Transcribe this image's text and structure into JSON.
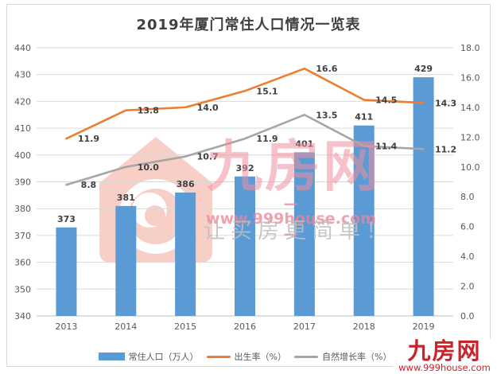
{
  "title": "2019年厦门常住人口情况一览表",
  "chart_data": {
    "type": "combo-bar-line",
    "title": "2019年厦门常住人口情况一览表",
    "categories": [
      "2013",
      "2014",
      "2015",
      "2016",
      "2017",
      "2018",
      "2019"
    ],
    "series": [
      {
        "name": "常住人口（万人）",
        "kind": "bar",
        "axis": "left",
        "color": "#5B9BD5",
        "values": [
          373,
          381,
          386,
          392,
          401,
          411,
          429
        ]
      },
      {
        "name": "出生率（%）",
        "kind": "line",
        "axis": "right",
        "color": "#ED7D31",
        "values": [
          11.9,
          13.8,
          14.0,
          15.1,
          16.6,
          14.5,
          14.3
        ]
      },
      {
        "name": "自然增长率（%）",
        "kind": "line",
        "axis": "right",
        "color": "#A6A6A6",
        "values": [
          8.8,
          10.0,
          10.7,
          11.9,
          13.5,
          11.4,
          11.2
        ]
      }
    ],
    "left_axis": {
      "min": 340,
      "max": 440,
      "step": 10,
      "decimals": 0
    },
    "right_axis": {
      "min": 0,
      "max": 18,
      "step": 2,
      "decimals": 1
    },
    "grid": true,
    "legend_position": "bottom",
    "xlabel": "",
    "ylabel": ""
  },
  "colors": {
    "bar": "#5B9BD5",
    "birth_rate_line": "#ED7D31",
    "growth_rate_line": "#A6A6A6",
    "gridline": "#d9d9d9",
    "watermark_pink": "#ef8f9d",
    "logo_red": "#c9242b"
  },
  "watermark": {
    "brand": "九房网",
    "url": "— www.999house.com —",
    "slogan": "让买房更简单！"
  },
  "corner_logo": {
    "brand": "九房网",
    "url": "www.999house.com"
  }
}
